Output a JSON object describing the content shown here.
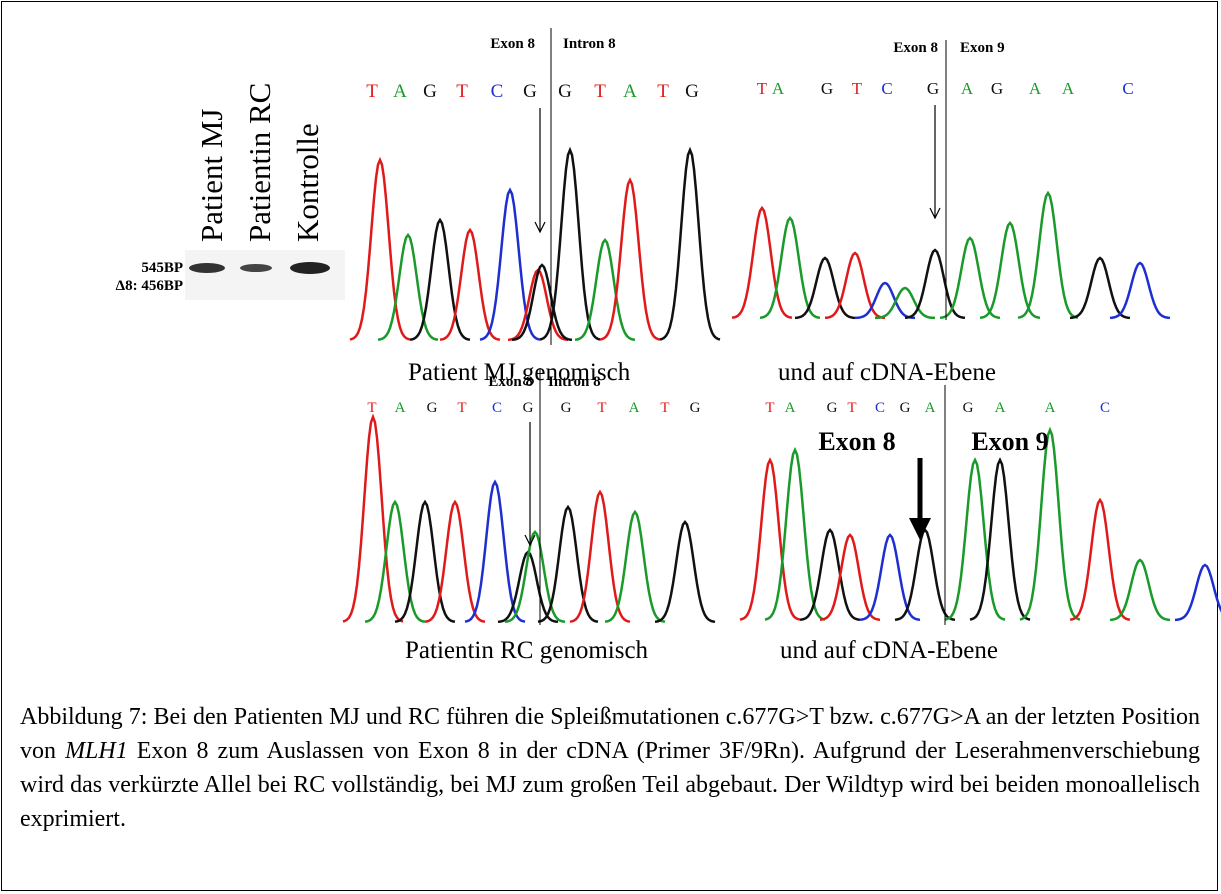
{
  "gel": {
    "lanes": [
      "Patient MJ",
      "Patientin RC",
      "Kontrolle"
    ],
    "bands": [
      "545BP",
      "Δ8: 456BP"
    ]
  },
  "panels": [
    {
      "sequence": [
        "T",
        "A",
        "G",
        "T",
        "C",
        "G",
        "G",
        "T",
        "A",
        "T",
        "G"
      ],
      "labels": [
        "Exon 8",
        "Intron 8"
      ],
      "caption": "Patient MJ genomisch"
    },
    {
      "sequence": [
        "T",
        "A",
        "G",
        "T",
        "C",
        "G",
        "A",
        "G",
        "A",
        "A",
        "C"
      ],
      "labels": [
        "Exon 8",
        "Exon 9"
      ],
      "caption": "und auf cDNA-Ebene"
    },
    {
      "sequence": [
        "T",
        "A",
        "G",
        "T",
        "C",
        "G",
        "G",
        "T",
        "A",
        "T",
        "G"
      ],
      "labels": [
        "Exon 8",
        "Intron 8"
      ],
      "caption": "Patientin RC genomisch"
    },
    {
      "sequence": [
        "T",
        "A",
        "G",
        "T",
        "C",
        "G",
        "A",
        "G",
        "A",
        "A",
        "C"
      ],
      "labels": [
        "Exon 8",
        "Exon 9"
      ],
      "caption": "und auf cDNA-Ebene"
    }
  ],
  "caption": {
    "parts": [
      "Abbildung 7: Bei den Patienten MJ und RC führen die Spleißmutationen c.677G>T bzw. c.677G>A an der letzten Position von ",
      "MLH1",
      " Exon 8 zum Auslassen von Exon 8 in der cDNA (Primer 3F/9Rn). Aufgrund der Leserahmenverschiebung wird das verkürzte Allel bei RC vollständig, bei MJ zum großen Teil abgebaut. Der Wildtyp wird bei beiden monoallelisch exprimiert."
    ]
  }
}
